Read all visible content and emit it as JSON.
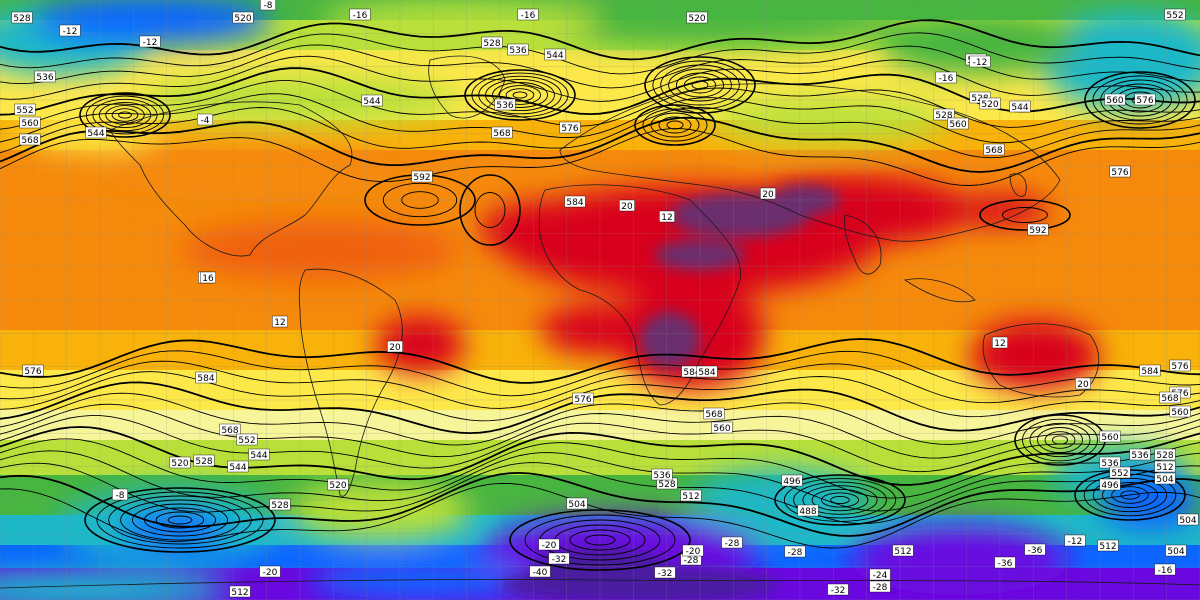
{
  "map": {
    "palette": {
      "extreme_hot": "#6b2f6e",
      "very_hot": "#d8001a",
      "hot": "#f06010",
      "warm": "#f58a0c",
      "mild_warm": "#f8b20a",
      "mild": "#fde84a",
      "pale": "#f7f59a",
      "cool": "#b9e03a",
      "cooler": "#47b540",
      "cold": "#1fb8c8",
      "colder": "#0d66ff",
      "very_cold": "#6a08e0",
      "extreme_cold": "#4a1ca0",
      "contour": "#000000",
      "coast": "#1a1a1a",
      "grid": "#888888"
    },
    "contour_labels": [
      {
        "text": "528"
      },
      {
        "text": "520"
      },
      {
        "text": "-8"
      },
      {
        "text": "-16"
      },
      {
        "text": "-16"
      },
      {
        "text": "520"
      },
      {
        "text": "-12"
      },
      {
        "text": "-12"
      },
      {
        "text": "528"
      },
      {
        "text": "536"
      },
      {
        "text": "544"
      },
      {
        "text": "536"
      },
      {
        "text": "552"
      },
      {
        "text": "560"
      },
      {
        "text": "568"
      },
      {
        "text": "544"
      },
      {
        "text": "-4"
      },
      {
        "text": "544"
      },
      {
        "text": "536"
      },
      {
        "text": "568"
      },
      {
        "text": "576"
      },
      {
        "text": "552"
      },
      {
        "text": "560"
      },
      {
        "text": "576"
      },
      {
        "text": "536"
      },
      {
        "text": "-12"
      },
      {
        "text": "-16"
      },
      {
        "text": "528"
      },
      {
        "text": "520"
      },
      {
        "text": "544"
      },
      {
        "text": "528"
      },
      {
        "text": "560"
      },
      {
        "text": "568"
      },
      {
        "text": "576"
      },
      {
        "text": "592"
      },
      {
        "text": "584"
      },
      {
        "text": "20"
      },
      {
        "text": "12"
      },
      {
        "text": "592"
      },
      {
        "text": "16"
      },
      {
        "text": "12"
      },
      {
        "text": "20"
      },
      {
        "text": "576"
      },
      {
        "text": "584"
      },
      {
        "text": "576"
      },
      {
        "text": "584"
      },
      {
        "text": "20"
      },
      {
        "text": "12"
      },
      {
        "text": "20"
      },
      {
        "text": "584"
      },
      {
        "text": "576"
      },
      {
        "text": "568"
      },
      {
        "text": "560"
      },
      {
        "text": "552"
      },
      {
        "text": "544"
      },
      {
        "text": "568"
      },
      {
        "text": "560"
      },
      {
        "text": "520"
      },
      {
        "text": "528"
      },
      {
        "text": "536"
      },
      {
        "text": "528"
      },
      {
        "text": "512"
      },
      {
        "text": "504"
      },
      {
        "text": "496"
      },
      {
        "text": "488"
      },
      {
        "text": "512"
      },
      {
        "text": "504"
      },
      {
        "text": "496"
      },
      {
        "text": "536"
      },
      {
        "text": "528"
      },
      {
        "text": "512"
      },
      {
        "text": "-20"
      },
      {
        "text": "-28"
      },
      {
        "text": "-28"
      },
      {
        "text": "-36"
      },
      {
        "text": "-32"
      },
      {
        "text": "-28"
      },
      {
        "text": "-24"
      },
      {
        "text": "-20"
      },
      {
        "text": "-32"
      },
      {
        "text": "-40"
      },
      {
        "text": "-36"
      },
      {
        "text": "512"
      },
      {
        "text": "-12"
      },
      {
        "text": "-16"
      },
      {
        "text": "-20"
      },
      {
        "text": "504"
      },
      {
        "text": "512"
      },
      {
        "text": "-28"
      },
      {
        "text": "-32"
      },
      {
        "text": "16"
      },
      {
        "text": "-8"
      },
      {
        "text": "504"
      },
      {
        "text": "520"
      },
      {
        "text": "528"
      },
      {
        "text": "536"
      },
      {
        "text": "544"
      },
      {
        "text": "552"
      },
      {
        "text": "560"
      },
      {
        "text": "568"
      },
      {
        "text": "576"
      },
      {
        "text": "584"
      }
    ]
  }
}
